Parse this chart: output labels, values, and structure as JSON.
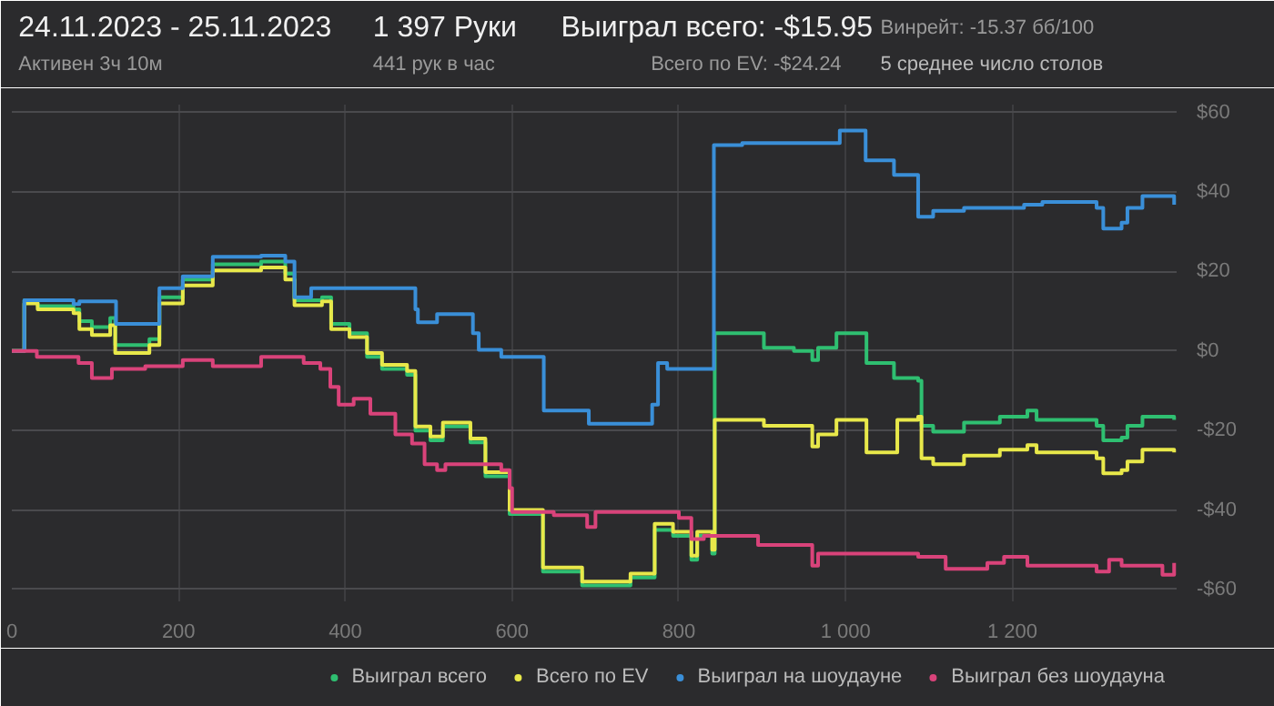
{
  "chart_data": {
    "type": "step",
    "title": "24.11.2023 - 25.11.2023",
    "subtitle": "Активен 3ч 10м",
    "annotations": [
      "1 397 Руки",
      "441 рук в час",
      "Выиграл всего: -$15.95",
      "Всего по EV: -$24.24",
      "Винрейт: -15.37 бб/100",
      "5 среднее число столов"
    ],
    "xlim": [
      0,
      1397
    ],
    "xticks": [
      0,
      200,
      400,
      600,
      800,
      {
        "value": 1000,
        "label": "1 000"
      },
      {
        "value": 1200,
        "label": "1 200"
      }
    ],
    "ylim": [
      -63,
      62
    ],
    "yticks": [
      {
        "value": -60,
        "label": "-$60"
      },
      {
        "value": -40,
        "label": "-$40"
      },
      {
        "value": -20,
        "label": "-$20"
      },
      {
        "value": 0,
        "label": "$0"
      },
      {
        "value": 20,
        "label": "$20"
      },
      {
        "value": 40,
        "label": "$40"
      },
      {
        "value": 60,
        "label": "$60"
      }
    ],
    "grid": true,
    "legend": "bottom",
    "series": [
      {
        "name": "Выиграл всего",
        "color": "#2fbf71",
        "x": [
          0,
          15,
          31,
          74,
          81,
          96,
          118,
          124,
          165,
          177,
          205,
          241,
          299,
          328,
          339,
          372,
          383,
          405,
          426,
          444,
          474,
          484,
          502,
          517,
          550,
          568,
          597,
          637,
          684,
          742,
          771,
          793,
          815,
          822,
          840,
          843,
          880,
          902,
          938,
          960,
          967,
          989,
          1021,
          1025,
          1058,
          1087,
          1091,
          1105,
          1142,
          1185,
          1218,
          1229,
          1301,
          1309,
          1331,
          1338,
          1356,
          1394
        ],
        "values": [
          0,
          12.8,
          11.3,
          10.5,
          7.5,
          6,
          8.3,
          1.5,
          3,
          13.5,
          18,
          21.8,
          22.5,
          19.5,
          12.8,
          13.5,
          6.8,
          4.5,
          -1.5,
          -4.5,
          -6,
          -20,
          -22.5,
          -19,
          -23,
          -31.5,
          -41,
          -55.5,
          -59,
          -57,
          -45,
          -46.5,
          -52.5,
          -46.5,
          -51,
          4.5,
          4.5,
          0.8,
          0,
          -2.3,
          0.8,
          4.5,
          4.5,
          -3,
          -6.8,
          -7.5,
          -18.8,
          -20.3,
          -18,
          -16.5,
          -15,
          -17.3,
          -18.8,
          -22.5,
          -21.8,
          -18.8,
          -16.5,
          -17.3
        ]
      },
      {
        "name": "Всего по EV",
        "color": "#e8e84a",
        "x": [
          0,
          15,
          31,
          74,
          81,
          96,
          118,
          124,
          165,
          177,
          205,
          241,
          299,
          328,
          339,
          372,
          383,
          405,
          426,
          444,
          474,
          484,
          502,
          517,
          550,
          568,
          597,
          637,
          684,
          742,
          771,
          793,
          815,
          822,
          840,
          843,
          902,
          960,
          967,
          989,
          1021,
          1025,
          1058,
          1062,
          1087,
          1091,
          1105,
          1142,
          1185,
          1218,
          1229,
          1301,
          1309,
          1331,
          1338,
          1356,
          1394
        ],
        "values": [
          0,
          12,
          10.5,
          9.5,
          5.5,
          4,
          6.5,
          -0.5,
          1.5,
          12,
          16.5,
          20.3,
          21,
          18,
          11.5,
          12.5,
          5.5,
          3.5,
          -0.5,
          -3.5,
          -5,
          -19,
          -21.5,
          -18,
          -22,
          -30.5,
          -40,
          -54.5,
          -58,
          -56,
          -43.5,
          -45.5,
          -51.5,
          -45.5,
          -50,
          -17.3,
          -18.8,
          -24,
          -21,
          -17.3,
          -17.3,
          -25.5,
          -25.5,
          -17.3,
          -16.5,
          -27,
          -28.5,
          -26.3,
          -24.8,
          -23.7,
          -25.5,
          -27,
          -30.8,
          -30,
          -27.8,
          -24.8,
          -25.5
        ]
      },
      {
        "name": "Выиграл на шоудауне",
        "color": "#3a8fd8",
        "x": [
          0,
          15,
          74,
          81,
          125,
          177,
          205,
          241,
          299,
          328,
          339,
          359,
          484,
          487,
          510,
          553,
          560,
          587,
          638,
          692,
          768,
          775,
          786,
          842,
          876,
          993,
          1024,
          1058,
          1087,
          1105,
          1142,
          1214,
          1236,
          1301,
          1309,
          1331,
          1338,
          1356,
          1394
        ],
        "values": [
          0,
          12.8,
          11.8,
          12.5,
          6.8,
          15.8,
          18.8,
          23.7,
          24,
          22.5,
          13.5,
          15.8,
          10.5,
          7.2,
          9.3,
          4.5,
          0.3,
          -1.5,
          -15,
          -18.3,
          -13.5,
          -3,
          -4.5,
          51.8,
          52.3,
          55.5,
          48,
          44.3,
          33.8,
          35.3,
          36,
          36.8,
          37.5,
          36,
          30.8,
          32.3,
          36,
          39,
          36.8
        ]
      },
      {
        "name": "Выиграл без шоудауна",
        "color": "#d9437a",
        "x": [
          0,
          15,
          30,
          80,
          96,
          120,
          160,
          205,
          241,
          299,
          350,
          370,
          382,
          392,
          410,
          430,
          460,
          480,
          495,
          510,
          520,
          587,
          597,
          600,
          650,
          690,
          700,
          776,
          800,
          815,
          830,
          855,
          895,
          960,
          967,
          1087,
          1120,
          1170,
          1190,
          1218,
          1301,
          1316,
          1331,
          1380,
          1394
        ],
        "values": [
          0,
          0,
          -1.5,
          -3,
          -6.8,
          -4.5,
          -3.8,
          -2.3,
          -3.8,
          -1.5,
          -3,
          -4.5,
          -9,
          -13.5,
          -12,
          -15.8,
          -21,
          -23.3,
          -28.5,
          -30,
          -28.5,
          -30,
          -34.5,
          -40.5,
          -41.3,
          -44.3,
          -40.5,
          -40.5,
          -42,
          -47.3,
          -46.5,
          -46.5,
          -48.8,
          -54,
          -51,
          -51.8,
          -54.8,
          -53.3,
          -51.8,
          -54,
          -55.5,
          -52.5,
          -54,
          -56.3,
          -53.3
        ]
      }
    ]
  }
}
